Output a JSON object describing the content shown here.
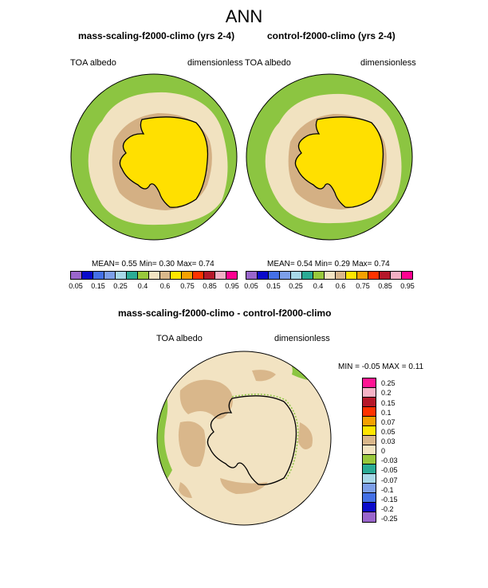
{
  "title": "ANN",
  "panels": [
    {
      "title": "mass-scaling-f2000-climo (yrs 2-4)",
      "left_label": "TOA albedo",
      "right_label": "dimensionless",
      "stats": {
        "mean_label": "MEAN=",
        "mean": "0.55",
        "min_label": "Min=",
        "min": "0.30",
        "max_label": "Max=",
        "max": "0.74"
      }
    },
    {
      "title": "control-f2000-climo (yrs 2-4)",
      "left_label": "TOA albedo",
      "right_label": "dimensionless",
      "stats": {
        "mean_label": "MEAN=",
        "mean": "0.54",
        "min_label": "Min=",
        "min": "0.29",
        "max_label": "Max=",
        "max": "0.74"
      }
    }
  ],
  "diff_panel": {
    "title": "mass-scaling-f2000-climo - control-f2000-climo",
    "left_label": "TOA albedo",
    "right_label": "dimensionless",
    "minmax_text": "MIN = -0.05 MAX = 0.11"
  },
  "colorbar": {
    "colors": [
      "#9a66cc",
      "#0a0acb",
      "#4470e6",
      "#7d9fe9",
      "#a8d8e8",
      "#2aab95",
      "#98c83c",
      "#f2e3c2",
      "#d9b78b",
      "#ffe500",
      "#f5a100",
      "#ff3300",
      "#b5182a",
      "#f2b0c4",
      "#ff0090"
    ],
    "labels": [
      "0.05",
      "0.15",
      "0.25",
      "0.4",
      "0.6",
      "0.75",
      "0.85",
      "0.95"
    ]
  },
  "diff_colorbar": {
    "colors": [
      "#ff1493",
      "#f5b3c6",
      "#b5182a",
      "#ff3300",
      "#f5a100",
      "#ffe500",
      "#d9b78b",
      "#f2e3c2",
      "#98c83c",
      "#2aab95",
      "#a8d8e8",
      "#7d9fe9",
      "#4470e6",
      "#0a0acb",
      "#9a66cc"
    ],
    "labels": [
      "0.25",
      "0.2",
      "0.15",
      "0.1",
      "0.07",
      "0.05",
      "0.03",
      "0",
      "-0.03",
      "-0.05",
      "-0.07",
      "-0.1",
      "-0.15",
      "-0.2",
      "-0.25"
    ]
  },
  "map_colors": {
    "ocean_outer": "#8cc541",
    "ocean_inner": "#f1e2c0",
    "sea_ice": "#d4b084",
    "continent": "#ffe000",
    "diff_background": "#f2e3c2",
    "diff_positive": "#d9b78b",
    "diff_negative": "#8cc541"
  }
}
